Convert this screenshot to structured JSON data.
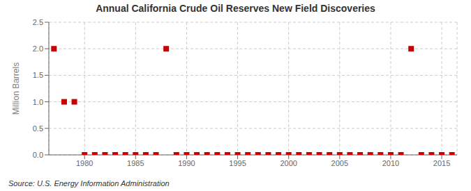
{
  "chart_data": {
    "type": "scatter",
    "title": "Annual California Crude Oil Reserves New Field Discoveries",
    "y_label": "Million Barrels",
    "annotations": [
      "Source: U.S. Energy Information Administration"
    ],
    "x": [
      1977,
      1978,
      1979,
      1980,
      1981,
      1982,
      1983,
      1984,
      1985,
      1986,
      1987,
      1988,
      1989,
      1990,
      1991,
      1992,
      1993,
      1994,
      1995,
      1996,
      1997,
      1998,
      1999,
      2000,
      2001,
      2002,
      2003,
      2004,
      2005,
      2006,
      2007,
      2008,
      2009,
      2010,
      2011,
      2012,
      2013,
      2014,
      2015,
      2016
    ],
    "values": [
      2.0,
      1.0,
      1.0,
      0.0,
      0.0,
      0.0,
      0.0,
      0.0,
      0.0,
      0.0,
      0.0,
      2.0,
      0.0,
      0.0,
      0.0,
      0.0,
      0.0,
      0.0,
      0.0,
      0.0,
      0.0,
      0.0,
      0.0,
      0.0,
      0.0,
      0.0,
      0.0,
      0.0,
      0.0,
      0.0,
      0.0,
      0.0,
      0.0,
      0.0,
      0.0,
      2.0,
      0.0,
      0.0,
      0.0,
      0.0
    ],
    "xlim": [
      1976.5,
      2016.5
    ],
    "ylim": [
      0,
      2.5
    ],
    "xticks": [
      1980,
      1985,
      1990,
      1995,
      2000,
      2005,
      2010,
      2015
    ],
    "yticks": [
      {
        "value": 0.0,
        "label": "0.0"
      },
      0.5,
      {
        "value": 1.0,
        "label": "1.0"
      },
      1.5,
      {
        "value": 2.0,
        "label": "2.0"
      },
      2.5
    ],
    "color": "#cc0000",
    "marker": "square",
    "grid": true
  }
}
